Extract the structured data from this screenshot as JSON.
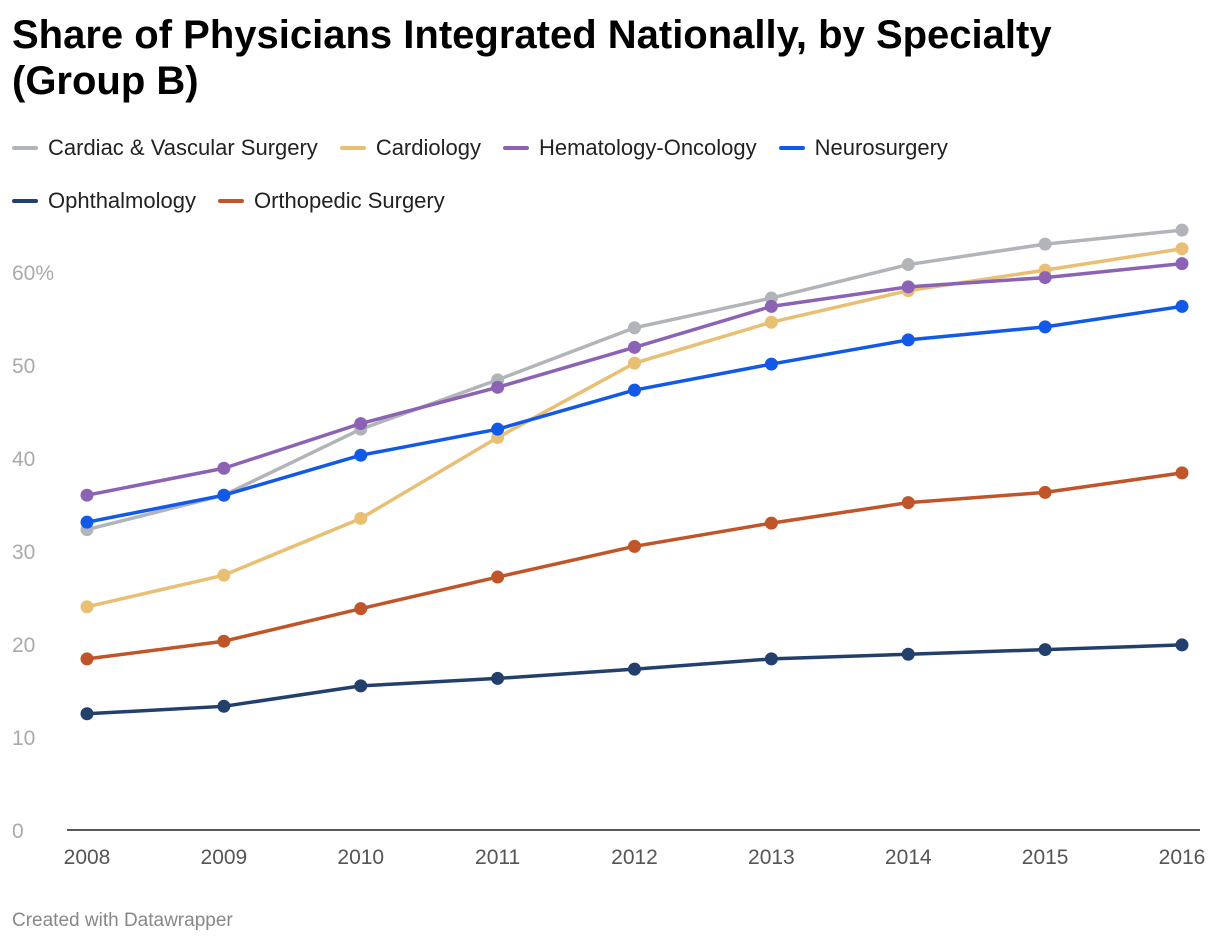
{
  "chart_data": {
    "type": "line",
    "title": "Share of Physicians Integrated Nationally, by Specialty (Group B)",
    "xlabel": "",
    "ylabel": "",
    "x": [
      "2008",
      "2009",
      "2010",
      "2011",
      "2012",
      "2013",
      "2014",
      "2015",
      "2016"
    ],
    "ylim": [
      0,
      65
    ],
    "yticks": [
      0,
      10,
      20,
      30,
      40,
      50,
      60
    ],
    "ytick_labels": [
      "0",
      "10",
      "20",
      "30",
      "40",
      "50",
      "60%"
    ],
    "grid": false,
    "legend_position": "top",
    "series": [
      {
        "name": "Cardiac & Vascular Surgery",
        "color": "#b1b4b8",
        "values": [
          32.3,
          36.0,
          43.1,
          48.4,
          54.0,
          57.2,
          60.8,
          63.0,
          64.5
        ]
      },
      {
        "name": "Cardiology",
        "color": "#e9bf74",
        "values": [
          24.0,
          27.4,
          33.5,
          42.2,
          50.2,
          54.6,
          58.0,
          60.2,
          62.5
        ]
      },
      {
        "name": "Hematology-Oncology",
        "color": "#8b62b4",
        "values": [
          36.0,
          38.9,
          43.7,
          47.6,
          51.9,
          56.3,
          58.4,
          59.4,
          60.9
        ]
      },
      {
        "name": "Neurosurgery",
        "color": "#1259e8",
        "values": [
          33.1,
          36.0,
          40.3,
          43.1,
          47.3,
          50.1,
          52.7,
          54.1,
          56.3
        ]
      },
      {
        "name": "Ophthalmology",
        "color": "#233f6b",
        "values": [
          12.5,
          13.3,
          15.5,
          16.3,
          17.3,
          18.4,
          18.9,
          19.4,
          19.9
        ]
      },
      {
        "name": "Orthopedic Surgery",
        "color": "#c0552a",
        "values": [
          18.4,
          20.3,
          23.8,
          27.2,
          30.5,
          33.0,
          35.2,
          36.3,
          38.4
        ]
      }
    ]
  },
  "footer": "Created with Datawrapper"
}
